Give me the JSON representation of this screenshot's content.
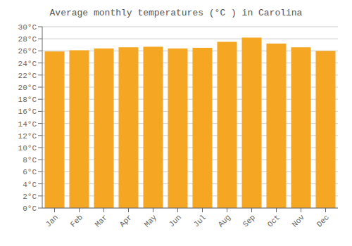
{
  "chart_data": {
    "type": "bar",
    "title": "Average monthly temperatures (°C ) in Carolina",
    "categories": [
      "Jan",
      "Feb",
      "Mar",
      "Apr",
      "May",
      "Jun",
      "Jul",
      "Aug",
      "Sep",
      "Oct",
      "Nov",
      "Dec"
    ],
    "values": [
      25.9,
      26.1,
      26.4,
      26.6,
      26.7,
      26.4,
      26.5,
      27.5,
      28.2,
      27.2,
      26.6,
      26.0
    ],
    "color": "#F5A623",
    "ylim": [
      0,
      30
    ],
    "yticks": [
      {
        "value": 0,
        "label": "0°C"
      },
      {
        "value": 2,
        "label": "2°C"
      },
      {
        "value": 4,
        "label": "4°C"
      },
      {
        "value": 6,
        "label": "6°C"
      },
      {
        "value": 8,
        "label": "8°C"
      },
      {
        "value": 10,
        "label": "10°C"
      },
      {
        "value": 12,
        "label": "12°C"
      },
      {
        "value": 14,
        "label": "14°C"
      },
      {
        "value": 16,
        "label": "16°C"
      },
      {
        "value": 18,
        "label": "18°C"
      },
      {
        "value": 20,
        "label": "20°C"
      },
      {
        "value": 22,
        "label": "22°C"
      },
      {
        "value": 24,
        "label": "24°C"
      },
      {
        "value": 26,
        "label": "26°C"
      },
      {
        "value": 28,
        "label": "28°C"
      },
      {
        "value": 30,
        "label": "30°C"
      }
    ],
    "grid": true
  }
}
